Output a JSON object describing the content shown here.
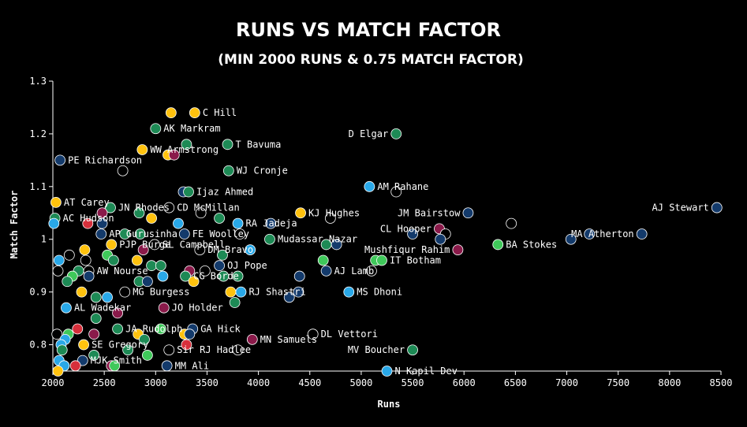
{
  "chart_data": {
    "type": "scatter",
    "title": "RUNS VS MATCH FACTOR",
    "subtitle": "(MIN 2000 RUNS & 0.75 MATCH FACTOR)",
    "xlabel": "Runs",
    "ylabel": "Match Factor",
    "xlim": [
      2000,
      8500
    ],
    "ylim": [
      0.75,
      1.3
    ],
    "xticks": [
      2000,
      2500,
      3000,
      3500,
      4000,
      4500,
      5000,
      5500,
      6000,
      6500,
      7000,
      7500,
      8000,
      8500
    ],
    "yticks": [
      0.8,
      0.9,
      1.0,
      1.1,
      1.2,
      1.3
    ],
    "ytick_labels": [
      "0.8",
      "0.9",
      "1",
      "1.1",
      "1.2",
      "1.3"
    ],
    "grid": false,
    "colors": {
      "yellow": "#ffc20e",
      "green": "#1d8a55",
      "lightgreen": "#3fc85a",
      "blue": "#29a8e8",
      "navy": "#133a6b",
      "red": "#d62f3b",
      "maroon": "#8a1a4a",
      "black": "#000000"
    },
    "points": [
      {
        "x": 3150,
        "y": 1.24,
        "c": "yellow",
        "label": ""
      },
      {
        "x": 3380,
        "y": 1.24,
        "c": "yellow",
        "label": "C Hill"
      },
      {
        "x": 3000,
        "y": 1.21,
        "c": "green",
        "label": "AK Markram"
      },
      {
        "x": 5340,
        "y": 1.2,
        "c": "green",
        "label": "D Elgar",
        "side": "left"
      },
      {
        "x": 3300,
        "y": 1.18,
        "c": "green",
        "label": ""
      },
      {
        "x": 3700,
        "y": 1.18,
        "c": "green",
        "label": "T Bavuma"
      },
      {
        "x": 2870,
        "y": 1.17,
        "c": "yellow",
        "label": "WW Armstrong"
      },
      {
        "x": 3120,
        "y": 1.16,
        "c": "yellow",
        "label": ""
      },
      {
        "x": 3180,
        "y": 1.16,
        "c": "maroon",
        "label": ""
      },
      {
        "x": 2070,
        "y": 1.15,
        "c": "navy",
        "label": "PE Richardson"
      },
      {
        "x": 2680,
        "y": 1.13,
        "c": "black",
        "label": ""
      },
      {
        "x": 3710,
        "y": 1.13,
        "c": "green",
        "label": "WJ Cronje"
      },
      {
        "x": 5080,
        "y": 1.1,
        "c": "blue",
        "label": "AM Rahane"
      },
      {
        "x": 5340,
        "y": 1.09,
        "c": "black",
        "label": ""
      },
      {
        "x": 3270,
        "y": 1.09,
        "c": "navy",
        "label": ""
      },
      {
        "x": 3320,
        "y": 1.09,
        "c": "green",
        "label": "Ijaz Ahmed"
      },
      {
        "x": 2030,
        "y": 1.07,
        "c": "yellow",
        "label": "AT Carey"
      },
      {
        "x": 2560,
        "y": 1.06,
        "c": "green",
        "label": "JN Rhodes"
      },
      {
        "x": 3130,
        "y": 1.06,
        "c": "black",
        "label": "CD McMillan"
      },
      {
        "x": 8460,
        "y": 1.06,
        "c": "navy",
        "label": "AJ Stewart",
        "side": "left"
      },
      {
        "x": 2480,
        "y": 1.05,
        "c": "maroon",
        "label": ""
      },
      {
        "x": 2840,
        "y": 1.05,
        "c": "green",
        "label": ""
      },
      {
        "x": 3440,
        "y": 1.05,
        "c": "black",
        "label": ""
      },
      {
        "x": 4410,
        "y": 1.05,
        "c": "yellow",
        "label": "KJ Hughes"
      },
      {
        "x": 6040,
        "y": 1.05,
        "c": "navy",
        "label": "JM Bairstow",
        "side": "left"
      },
      {
        "x": 2020,
        "y": 1.04,
        "c": "green",
        "label": "AC Hudson"
      },
      {
        "x": 2960,
        "y": 1.04,
        "c": "yellow",
        "label": ""
      },
      {
        "x": 3620,
        "y": 1.04,
        "c": "green",
        "label": ""
      },
      {
        "x": 4700,
        "y": 1.04,
        "c": "black",
        "label": ""
      },
      {
        "x": 2010,
        "y": 1.03,
        "c": "blue",
        "label": ""
      },
      {
        "x": 2340,
        "y": 1.03,
        "c": "red",
        "label": ""
      },
      {
        "x": 2480,
        "y": 1.03,
        "c": "navy",
        "label": ""
      },
      {
        "x": 3220,
        "y": 1.03,
        "c": "blue",
        "label": ""
      },
      {
        "x": 3800,
        "y": 1.03,
        "c": "blue",
        "label": "RA Jadeja"
      },
      {
        "x": 4120,
        "y": 1.03,
        "c": "navy",
        "label": ""
      },
      {
        "x": 6460,
        "y": 1.03,
        "c": "black",
        "label": ""
      },
      {
        "x": 5760,
        "y": 1.02,
        "c": "maroon",
        "label": "CL Hooper",
        "side": "left"
      },
      {
        "x": 2470,
        "y": 1.01,
        "c": "navy",
        "label": "AP Gurusinha"
      },
      {
        "x": 2700,
        "y": 1.01,
        "c": "green",
        "label": ""
      },
      {
        "x": 2850,
        "y": 1.01,
        "c": "green",
        "label": ""
      },
      {
        "x": 3280,
        "y": 1.01,
        "c": "navy",
        "label": "FE Woolley"
      },
      {
        "x": 3820,
        "y": 1.01,
        "c": "black",
        "label": ""
      },
      {
        "x": 5500,
        "y": 1.01,
        "c": "navy",
        "label": ""
      },
      {
        "x": 5820,
        "y": 1.01,
        "c": "black",
        "label": ""
      },
      {
        "x": 7220,
        "y": 1.01,
        "c": "navy",
        "label": ""
      },
      {
        "x": 7730,
        "y": 1.01,
        "c": "navy",
        "label": "MA Atherton",
        "side": "left"
      },
      {
        "x": 4110,
        "y": 1.0,
        "c": "green",
        "label": "Mudassar Nazar"
      },
      {
        "x": 5770,
        "y": 1.0,
        "c": "navy",
        "label": ""
      },
      {
        "x": 7040,
        "y": 1.0,
        "c": "navy",
        "label": ""
      },
      {
        "x": 2570,
        "y": 0.99,
        "c": "yellow",
        "label": "PJP Burge"
      },
      {
        "x": 2990,
        "y": 0.99,
        "c": "black",
        "label": "SL Campbell"
      },
      {
        "x": 4660,
        "y": 0.99,
        "c": "green",
        "label": ""
      },
      {
        "x": 4760,
        "y": 0.99,
        "c": "navy",
        "label": ""
      },
      {
        "x": 6330,
        "y": 0.99,
        "c": "lightgreen",
        "label": "BA Stokes"
      },
      {
        "x": 2310,
        "y": 0.98,
        "c": "yellow",
        "label": ""
      },
      {
        "x": 2880,
        "y": 0.98,
        "c": "maroon",
        "label": ""
      },
      {
        "x": 3430,
        "y": 0.98,
        "c": "black",
        "label": "DM Bravo"
      },
      {
        "x": 3920,
        "y": 0.98,
        "c": "blue",
        "label": ""
      },
      {
        "x": 5940,
        "y": 0.98,
        "c": "maroon",
        "label": "Mushfiqur Rahim",
        "side": "left"
      },
      {
        "x": 2160,
        "y": 0.97,
        "c": "black",
        "label": ""
      },
      {
        "x": 2530,
        "y": 0.97,
        "c": "lightgreen",
        "label": ""
      },
      {
        "x": 3650,
        "y": 0.97,
        "c": "green",
        "label": ""
      },
      {
        "x": 2060,
        "y": 0.96,
        "c": "blue",
        "label": ""
      },
      {
        "x": 2320,
        "y": 0.96,
        "c": "black",
        "label": ""
      },
      {
        "x": 2590,
        "y": 0.96,
        "c": "green",
        "label": ""
      },
      {
        "x": 2820,
        "y": 0.96,
        "c": "yellow",
        "label": ""
      },
      {
        "x": 4630,
        "y": 0.96,
        "c": "lightgreen",
        "label": ""
      },
      {
        "x": 5140,
        "y": 0.96,
        "c": "lightgreen",
        "label": ""
      },
      {
        "x": 5200,
        "y": 0.96,
        "c": "lightgreen",
        "label": "IT Botham"
      },
      {
        "x": 2960,
        "y": 0.95,
        "c": "green",
        "label": ""
      },
      {
        "x": 3050,
        "y": 0.95,
        "c": "green",
        "label": ""
      },
      {
        "x": 3620,
        "y": 0.95,
        "c": "navy",
        "label": "OJ Pope"
      },
      {
        "x": 2050,
        "y": 0.94,
        "c": "black",
        "label": ""
      },
      {
        "x": 2250,
        "y": 0.94,
        "c": "green",
        "label": ""
      },
      {
        "x": 2350,
        "y": 0.94,
        "c": "black",
        "label": "AW Nourse"
      },
      {
        "x": 3330,
        "y": 0.94,
        "c": "maroon",
        "label": ""
      },
      {
        "x": 3480,
        "y": 0.94,
        "c": "black",
        "label": ""
      },
      {
        "x": 4660,
        "y": 0.94,
        "c": "navy",
        "label": "AJ Lamb"
      },
      {
        "x": 5100,
        "y": 0.94,
        "c": "black",
        "label": ""
      },
      {
        "x": 2190,
        "y": 0.93,
        "c": "lightgreen",
        "label": ""
      },
      {
        "x": 2350,
        "y": 0.93,
        "c": "navy",
        "label": ""
      },
      {
        "x": 3070,
        "y": 0.93,
        "c": "blue",
        "label": ""
      },
      {
        "x": 3290,
        "y": 0.93,
        "c": "green",
        "label": "CG Borde"
      },
      {
        "x": 3660,
        "y": 0.93,
        "c": "green",
        "label": ""
      },
      {
        "x": 3800,
        "y": 0.93,
        "c": "green",
        "label": ""
      },
      {
        "x": 4400,
        "y": 0.93,
        "c": "navy",
        "label": ""
      },
      {
        "x": 2140,
        "y": 0.92,
        "c": "green",
        "label": ""
      },
      {
        "x": 2840,
        "y": 0.92,
        "c": "green",
        "label": ""
      },
      {
        "x": 2920,
        "y": 0.92,
        "c": "navy",
        "label": ""
      },
      {
        "x": 3370,
        "y": 0.92,
        "c": "yellow",
        "label": ""
      },
      {
        "x": 2280,
        "y": 0.9,
        "c": "yellow",
        "label": ""
      },
      {
        "x": 2700,
        "y": 0.9,
        "c": "black",
        "label": "MG Burgess"
      },
      {
        "x": 3730,
        "y": 0.9,
        "c": "yellow",
        "label": ""
      },
      {
        "x": 3830,
        "y": 0.9,
        "c": "blue",
        "label": "RJ Shastri"
      },
      {
        "x": 4880,
        "y": 0.9,
        "c": "blue",
        "label": "MS Dhoni"
      },
      {
        "x": 2420,
        "y": 0.89,
        "c": "green",
        "label": ""
      },
      {
        "x": 2530,
        "y": 0.89,
        "c": "blue",
        "label": ""
      },
      {
        "x": 4300,
        "y": 0.89,
        "c": "navy",
        "label": ""
      },
      {
        "x": 4390,
        "y": 0.9,
        "c": "navy",
        "label": ""
      },
      {
        "x": 3770,
        "y": 0.88,
        "c": "green",
        "label": ""
      },
      {
        "x": 2130,
        "y": 0.87,
        "c": "blue",
        "label": "AL Wadekar"
      },
      {
        "x": 3080,
        "y": 0.87,
        "c": "maroon",
        "label": "JO Holder"
      },
      {
        "x": 2630,
        "y": 0.86,
        "c": "maroon",
        "label": ""
      },
      {
        "x": 2420,
        "y": 0.85,
        "c": "green",
        "label": ""
      },
      {
        "x": 2240,
        "y": 0.83,
        "c": "red",
        "label": ""
      },
      {
        "x": 2630,
        "y": 0.83,
        "c": "green",
        "label": "JA Rudolph"
      },
      {
        "x": 3050,
        "y": 0.83,
        "c": "lightgreen",
        "label": ""
      },
      {
        "x": 3360,
        "y": 0.83,
        "c": "navy",
        "label": "GA Hick"
      },
      {
        "x": 2040,
        "y": 0.82,
        "c": "black",
        "label": ""
      },
      {
        "x": 2150,
        "y": 0.82,
        "c": "lightgreen",
        "label": ""
      },
      {
        "x": 2400,
        "y": 0.82,
        "c": "maroon",
        "label": ""
      },
      {
        "x": 2830,
        "y": 0.82,
        "c": "yellow",
        "label": ""
      },
      {
        "x": 3280,
        "y": 0.82,
        "c": "yellow",
        "label": ""
      },
      {
        "x": 3330,
        "y": 0.82,
        "c": "navy",
        "label": ""
      },
      {
        "x": 4530,
        "y": 0.82,
        "c": "black",
        "label": "DL Vettori"
      },
      {
        "x": 2120,
        "y": 0.81,
        "c": "blue",
        "label": ""
      },
      {
        "x": 2890,
        "y": 0.81,
        "c": "green",
        "label": ""
      },
      {
        "x": 3940,
        "y": 0.81,
        "c": "maroon",
        "label": "MN Samuels"
      },
      {
        "x": 2080,
        "y": 0.8,
        "c": "blue",
        "label": ""
      },
      {
        "x": 2300,
        "y": 0.8,
        "c": "yellow",
        "label": "SE Gregory"
      },
      {
        "x": 3300,
        "y": 0.8,
        "c": "red",
        "label": ""
      },
      {
        "x": 2090,
        "y": 0.79,
        "c": "green",
        "label": ""
      },
      {
        "x": 2730,
        "y": 0.79,
        "c": "green",
        "label": ""
      },
      {
        "x": 3130,
        "y": 0.79,
        "c": "black",
        "label": "Sir RJ Hadlee"
      },
      {
        "x": 3800,
        "y": 0.79,
        "c": "black",
        "label": ""
      },
      {
        "x": 5500,
        "y": 0.79,
        "c": "green",
        "label": "MV Boucher",
        "side": "left"
      },
      {
        "x": 2400,
        "y": 0.78,
        "c": "green",
        "label": ""
      },
      {
        "x": 2920,
        "y": 0.78,
        "c": "lightgreen",
        "label": ""
      },
      {
        "x": 2060,
        "y": 0.77,
        "c": "blue",
        "label": ""
      },
      {
        "x": 2290,
        "y": 0.77,
        "c": "navy",
        "label": "MJK Smith"
      },
      {
        "x": 2110,
        "y": 0.76,
        "c": "blue",
        "label": ""
      },
      {
        "x": 2220,
        "y": 0.76,
        "c": "red",
        "label": ""
      },
      {
        "x": 2570,
        "y": 0.76,
        "c": "maroon",
        "label": ""
      },
      {
        "x": 2600,
        "y": 0.76,
        "c": "lightgreen",
        "label": ""
      },
      {
        "x": 3110,
        "y": 0.76,
        "c": "navy",
        "label": "MM Ali"
      },
      {
        "x": 2050,
        "y": 0.75,
        "c": "yellow",
        "label": ""
      },
      {
        "x": 5250,
        "y": 0.75,
        "c": "blue",
        "label": "N Kapil Dev"
      }
    ]
  }
}
